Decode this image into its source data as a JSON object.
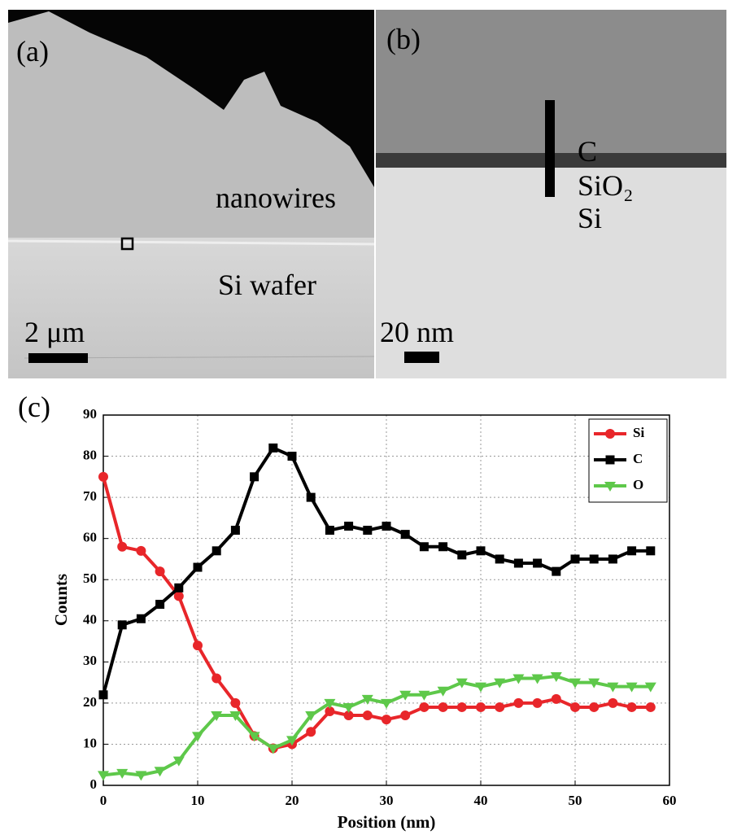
{
  "panels": {
    "a": {
      "label": "(a)",
      "texts": [
        "nanowires",
        "Si wafer"
      ],
      "scale": "2 μm"
    },
    "b": {
      "label": "(b)",
      "texts": [
        "C",
        "SiO₂",
        "Si"
      ],
      "scale": "20 nm"
    },
    "c": {
      "label": "(c)"
    }
  },
  "chart_data": {
    "type": "line",
    "x_label": "Position (nm)",
    "y_label": "Counts",
    "x": [
      0,
      2,
      4,
      6,
      8,
      10,
      12,
      14,
      16,
      18,
      20,
      22,
      24,
      26,
      28,
      30,
      32,
      34,
      36,
      38,
      40,
      42,
      44,
      46,
      48,
      50,
      52,
      54,
      56,
      58
    ],
    "series": [
      {
        "name": "Si",
        "color": "#e8262a",
        "marker": "circle",
        "values": [
          75,
          58,
          57,
          52,
          46,
          34,
          26,
          20,
          12,
          9,
          10,
          13,
          18,
          17,
          17,
          16,
          17,
          19,
          19,
          19,
          19,
          19,
          20,
          20,
          21,
          19,
          19,
          20,
          19,
          19
        ]
      },
      {
        "name": "C",
        "color": "#000000",
        "marker": "square",
        "values": [
          22,
          39,
          40.5,
          44,
          48,
          53,
          57,
          62,
          75,
          82,
          80,
          70,
          62,
          63,
          62,
          63,
          61,
          58,
          58,
          56,
          57,
          55,
          54,
          54,
          52,
          55,
          55,
          55,
          57,
          57
        ]
      },
      {
        "name": "O",
        "color": "#5ec84a",
        "marker": "triangle",
        "values": [
          2.5,
          3,
          2.5,
          3.5,
          6,
          12,
          17,
          17,
          12,
          9,
          11,
          17,
          20,
          19,
          21,
          20,
          22,
          22,
          23,
          25,
          24,
          25,
          26,
          26,
          26.5,
          25,
          25,
          24,
          24,
          24
        ]
      }
    ],
    "xlim": [
      0,
      60
    ],
    "xticks": [
      0,
      10,
      20,
      30,
      40,
      50,
      60
    ],
    "ylim": [
      0,
      90
    ],
    "yticks": [
      0,
      10,
      20,
      30,
      40,
      50,
      60,
      70,
      80,
      90
    ],
    "grid": true,
    "legend": "top-right"
  }
}
